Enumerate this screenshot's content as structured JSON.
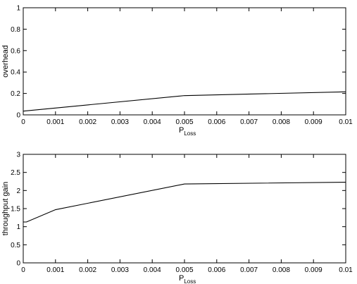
{
  "chart_data": [
    {
      "type": "line",
      "title": "",
      "xlabel": "P",
      "xlabel_subscript": "Loss",
      "ylabel": "overhead",
      "xlim": [
        0,
        0.01
      ],
      "ylim": [
        0,
        1
      ],
      "x_ticks": [
        "0",
        "0.001",
        "0.002",
        "0.003",
        "0.004",
        "0.005",
        "0.006",
        "0.007",
        "0.008",
        "0.009",
        "0.01"
      ],
      "y_ticks": [
        "0",
        "0.2",
        "0.4",
        "0.6",
        "0.8",
        "1"
      ],
      "grid": false,
      "series": [
        {
          "x": [
            0,
            0.005,
            0.01
          ],
          "y": [
            0.035,
            0.18,
            0.215
          ]
        }
      ]
    },
    {
      "type": "line",
      "title": "",
      "xlabel": "P",
      "xlabel_subscript": "Loss",
      "ylabel": "throughput gain",
      "xlim": [
        0,
        0.01
      ],
      "ylim": [
        0,
        3
      ],
      "x_ticks": [
        "0",
        "0.001",
        "0.002",
        "0.003",
        "0.004",
        "0.005",
        "0.006",
        "0.007",
        "0.008",
        "0.009",
        "0.01"
      ],
      "y_ticks": [
        "0",
        "0.5",
        "1",
        "1.5",
        "2",
        "2.5",
        "3"
      ],
      "grid": false,
      "series": [
        {
          "x": [
            0,
            0.0001,
            0.001,
            0.005,
            0.01
          ],
          "y": [
            1.13,
            1.13,
            1.47,
            2.18,
            2.23
          ]
        }
      ]
    }
  ]
}
